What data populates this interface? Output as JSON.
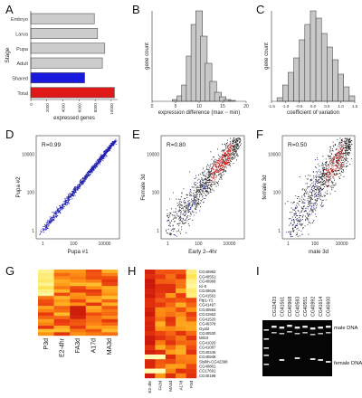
{
  "panel_letters": {
    "A": "A",
    "B": "B",
    "C": "C",
    "D": "D",
    "E": "E",
    "F": "F",
    "G": "G",
    "H": "H",
    "I": "I"
  },
  "chart_data": [
    {
      "panel": "A",
      "type": "bar",
      "orientation": "horizontal",
      "categories": [
        "Embryo",
        "Larva",
        "Pupa",
        "Adult",
        "Shared",
        "Total"
      ],
      "values": [
        7900,
        8300,
        9200,
        8900,
        6700,
        10400
      ],
      "colors": [
        "#cccccc",
        "#cccccc",
        "#cccccc",
        "#cccccc",
        "#1a1adf",
        "#e01818"
      ],
      "ylabel": "Stage",
      "xlabel": "expressed genes",
      "xticks": [
        0,
        2000,
        4000,
        6000,
        8000,
        10000
      ],
      "xlim": [
        0,
        10800
      ]
    },
    {
      "panel": "B",
      "type": "bar",
      "xlabel": "expression difference (max − min)",
      "ylabel": "gene count",
      "xticks": [
        0,
        5,
        10,
        15,
        20
      ],
      "xlim": [
        0,
        20
      ],
      "yticks": [],
      "x": [
        5,
        6,
        7,
        8,
        9,
        10,
        11,
        12,
        13,
        14,
        15,
        16,
        17
      ],
      "values": [
        0.02,
        0.06,
        0.18,
        0.5,
        0.85,
        1.0,
        0.72,
        0.42,
        0.22,
        0.1,
        0.05,
        0.02,
        0.01
      ]
    },
    {
      "panel": "C",
      "type": "bar",
      "xlabel": "coefficient of variation",
      "ylabel": "gene count",
      "xticks": [
        "-1.5",
        "-1.0",
        "-0.5",
        "0.0",
        "0.5",
        "1.0",
        "1.5"
      ],
      "xlim": [
        -1.5,
        1.5
      ],
      "x": [
        -1.2,
        -1.0,
        -0.8,
        -0.6,
        -0.4,
        -0.2,
        0.0,
        0.2,
        0.4,
        0.6,
        0.8,
        1.0,
        1.2,
        1.4
      ],
      "values": [
        0.04,
        0.18,
        0.32,
        0.48,
        0.68,
        0.85,
        1.0,
        0.92,
        0.75,
        0.6,
        0.46,
        0.3,
        0.16,
        0.06
      ]
    },
    {
      "panel": "D",
      "type": "scatter",
      "annotation": "R=0.99",
      "xlabel": "Pupa #1",
      "ylabel": "Pupa #2",
      "ticks": [
        "1",
        "100",
        "10000"
      ],
      "log_scale": true,
      "spread": 0.04,
      "colors": [
        "#2020b0"
      ]
    },
    {
      "panel": "E",
      "type": "scatter",
      "annotation": "R=0.80",
      "xlabel": "Early 2–4hr",
      "ylabel": "Female 3d",
      "ticks": [
        "1",
        "100",
        "10000"
      ],
      "log_scale": true,
      "spread": 0.22,
      "colors": [
        "#222222",
        "#d01010",
        "#3030c0"
      ]
    },
    {
      "panel": "F",
      "type": "scatter",
      "annotation": "R=0.50",
      "xlabel": "male 3d",
      "ylabel": "female 3d",
      "ticks": [
        "1",
        "100",
        "10000"
      ],
      "log_scale": true,
      "spread": 0.3,
      "colors": [
        "#222222",
        "#d01010",
        "#3030c0"
      ]
    },
    {
      "panel": "G",
      "type": "heatmap",
      "columns": [
        "P3d",
        "E2-4hr",
        "FA3d",
        "A17d",
        "MA3d"
      ],
      "rows": 20
    },
    {
      "panel": "H",
      "type": "heatmap",
      "columns": [
        "E2-4hr",
        "FA3d",
        "MA3d",
        "A17d",
        "P3d"
      ],
      "row_labels": [
        "CG40992",
        "CG40551",
        "CG40968",
        "Ici-5",
        "CG40625",
        "CG41561",
        "Ptp1-Y2",
        "CG41497",
        "CG40583",
        "CG41562",
        "CG41520",
        "CG40378",
        "Gyal2",
        "CG40530",
        "Mil10",
        "CG41020",
        "CG41087",
        "CG40245",
        "CG40948",
        "Sls/kh-CG42398",
        "CG40801",
        "CG17691",
        "CG40196"
      ]
    }
  ],
  "gel": {
    "lane_labels": [
      "CG12423",
      "CG41561",
      "CG40968",
      "CG40583",
      "CG40551",
      "CG40992",
      "CG41614",
      "CG40600"
    ],
    "band_labels": {
      "male": "male DNA",
      "female": "female DNA"
    }
  }
}
